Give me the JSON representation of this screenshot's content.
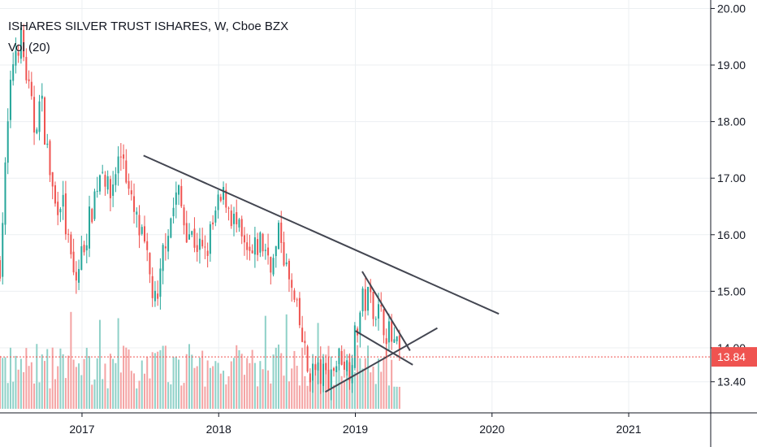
{
  "header": {
    "symbol_line": "ISHARES SILVER TRUST ISHARES, W, Cboe BZX",
    "indicator": "Vol (20)"
  },
  "colors": {
    "up": "#26a69a",
    "down": "#ef5350",
    "vol_up": "#8fd1c8",
    "vol_down": "#f4a3a3",
    "grid": "#eceff2",
    "trendline": "#434651",
    "price_line": "#ef5350",
    "axis_bg": "#ffffff"
  },
  "chart_data": {
    "type": "candlestick",
    "interval": "W",
    "y_ticks": [
      "20.00",
      "19.00",
      "18.00",
      "17.00",
      "16.00",
      "15.00",
      "14.00",
      "13.40"
    ],
    "x_ticks": [
      "2017",
      "2018",
      "2019",
      "2020",
      "2021"
    ],
    "ylim": [
      12.85,
      20.15
    ],
    "xlim": [
      2016.4,
      2021.6
    ],
    "last_price": "13.84",
    "grid": true,
    "anchors": [
      [
        2016.4,
        15.5
      ],
      [
        2016.46,
        18.0
      ],
      [
        2016.5,
        19.2
      ],
      [
        2016.55,
        19.5
      ],
      [
        2016.6,
        18.7
      ],
      [
        2016.65,
        17.9
      ],
      [
        2016.7,
        18.4
      ],
      [
        2016.75,
        17.4
      ],
      [
        2016.8,
        16.5
      ],
      [
        2016.85,
        16.7
      ],
      [
        2016.9,
        15.8
      ],
      [
        2016.95,
        15.1
      ],
      [
        2017.0,
        15.7
      ],
      [
        2017.05,
        16.2
      ],
      [
        2017.1,
        16.8
      ],
      [
        2017.15,
        17.3
      ],
      [
        2017.2,
        16.6
      ],
      [
        2017.25,
        17.2
      ],
      [
        2017.3,
        17.5
      ],
      [
        2017.35,
        16.6
      ],
      [
        2017.4,
        16.2
      ],
      [
        2017.45,
        15.8
      ],
      [
        2017.5,
        15.2
      ],
      [
        2017.55,
        14.6
      ],
      [
        2017.6,
        15.9
      ],
      [
        2017.65,
        16.3
      ],
      [
        2017.7,
        16.8
      ],
      [
        2017.75,
        16.2
      ],
      [
        2017.8,
        16.0
      ],
      [
        2017.85,
        15.8
      ],
      [
        2017.9,
        15.6
      ],
      [
        2017.95,
        16.1
      ],
      [
        2018.0,
        16.5
      ],
      [
        2018.05,
        16.7
      ],
      [
        2018.1,
        16.3
      ],
      [
        2018.15,
        16.0
      ],
      [
        2018.2,
        15.6
      ],
      [
        2018.25,
        15.6
      ],
      [
        2018.3,
        15.9
      ],
      [
        2018.35,
        15.7
      ],
      [
        2018.4,
        15.5
      ],
      [
        2018.45,
        16.1
      ],
      [
        2018.5,
        15.3
      ],
      [
        2018.55,
        14.8
      ],
      [
        2018.6,
        14.3
      ],
      [
        2018.65,
        13.6
      ],
      [
        2018.7,
        13.6
      ],
      [
        2018.75,
        13.5
      ],
      [
        2018.8,
        13.5
      ],
      [
        2018.85,
        13.7
      ],
      [
        2018.9,
        13.9
      ],
      [
        2018.95,
        13.6
      ],
      [
        2019.0,
        14.2
      ],
      [
        2019.05,
        14.8
      ],
      [
        2019.1,
        14.9
      ],
      [
        2019.15,
        14.7
      ],
      [
        2019.2,
        14.5
      ],
      [
        2019.25,
        14.2
      ],
      [
        2019.3,
        13.95
      ],
      [
        2019.34,
        13.84
      ]
    ],
    "volume_ylim": [
      0,
      1
    ],
    "trendlines": [
      {
        "from": [
          2017.45,
          17.4
        ],
        "to": [
          2020.05,
          14.6
        ]
      },
      {
        "from": [
          2018.78,
          13.22
        ],
        "to": [
          2019.6,
          14.35
        ]
      },
      {
        "from": [
          2019.05,
          15.35
        ],
        "to": [
          2019.4,
          13.95
        ]
      },
      {
        "from": [
          2019.0,
          14.3
        ],
        "to": [
          2019.42,
          13.7
        ]
      }
    ]
  }
}
